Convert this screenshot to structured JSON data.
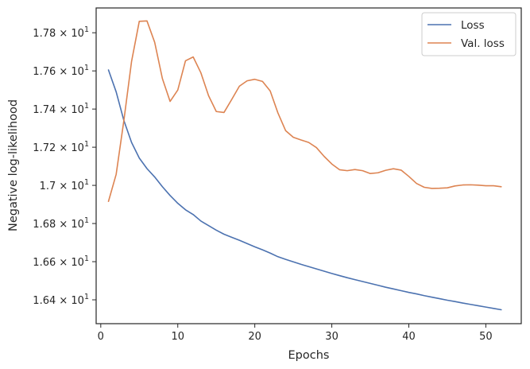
{
  "chart_data": {
    "type": "line",
    "xlabel": "Epochs",
    "ylabel": "Negative log-likelihood",
    "xlim": [
      -0.6,
      54.6
    ],
    "ylim": [
      16.275,
      17.93
    ],
    "xticks": [
      0,
      10,
      20,
      30,
      40,
      50
    ],
    "yticks": [
      {
        "value": 16.4,
        "mantissa": "1.64",
        "base": "10",
        "exp": "1"
      },
      {
        "value": 16.6,
        "mantissa": "1.66",
        "base": "10",
        "exp": "1"
      },
      {
        "value": 16.8,
        "mantissa": "1.68",
        "base": "10",
        "exp": "1"
      },
      {
        "value": 17.0,
        "mantissa": "1.7",
        "base": "10",
        "exp": "1"
      },
      {
        "value": 17.2,
        "mantissa": "1.72",
        "base": "10",
        "exp": "1"
      },
      {
        "value": 17.4,
        "mantissa": "1.74",
        "base": "10",
        "exp": "1"
      },
      {
        "value": 17.6,
        "mantissa": "1.76",
        "base": "10",
        "exp": "1"
      },
      {
        "value": 17.8,
        "mantissa": "1.78",
        "base": "10",
        "exp": "1"
      }
    ],
    "times_sign": "×",
    "grid": false,
    "legend_position": "upper-right",
    "series": [
      {
        "name": "Loss",
        "color": "#4c72b0",
        "x": [
          1,
          2,
          3,
          4,
          5,
          6,
          7,
          8,
          9,
          10,
          11,
          12,
          13,
          14,
          15,
          16,
          17,
          18,
          19,
          20,
          21,
          22,
          23,
          24,
          25,
          26,
          27,
          28,
          29,
          30,
          31,
          32,
          33,
          34,
          35,
          36,
          37,
          38,
          39,
          40,
          41,
          42,
          43,
          44,
          45,
          46,
          47,
          48,
          49,
          50,
          51,
          52
        ],
        "y": [
          17.605,
          17.49,
          17.34,
          17.225,
          17.143,
          17.088,
          17.044,
          16.993,
          16.947,
          16.906,
          16.872,
          16.847,
          16.813,
          16.789,
          16.765,
          16.744,
          16.728,
          16.712,
          16.695,
          16.678,
          16.662,
          16.645,
          16.626,
          16.612,
          16.599,
          16.586,
          16.574,
          16.562,
          16.55,
          16.538,
          16.527,
          16.516,
          16.506,
          16.496,
          16.486,
          16.476,
          16.466,
          16.457,
          16.448,
          16.439,
          16.431,
          16.422,
          16.414,
          16.406,
          16.398,
          16.391,
          16.383,
          16.376,
          16.369,
          16.362,
          16.355,
          16.348
        ]
      },
      {
        "name": "Val. loss",
        "color": "#dd8452",
        "x": [
          1,
          2,
          3,
          4,
          5,
          6,
          7,
          8,
          9,
          10,
          11,
          12,
          13,
          14,
          15,
          16,
          17,
          18,
          19,
          20,
          21,
          22,
          23,
          24,
          25,
          26,
          27,
          28,
          29,
          30,
          31,
          32,
          33,
          34,
          35,
          36,
          37,
          38,
          39,
          40,
          41,
          42,
          43,
          44,
          45,
          46,
          47,
          48,
          49,
          50,
          51,
          52
        ],
        "y": [
          16.916,
          17.058,
          17.34,
          17.65,
          17.86,
          17.862,
          17.75,
          17.56,
          17.44,
          17.5,
          17.653,
          17.673,
          17.59,
          17.47,
          17.387,
          17.382,
          17.45,
          17.52,
          17.548,
          17.556,
          17.545,
          17.495,
          17.38,
          17.287,
          17.252,
          17.238,
          17.225,
          17.198,
          17.152,
          17.112,
          17.082,
          17.077,
          17.083,
          17.077,
          17.062,
          17.066,
          17.079,
          17.087,
          17.08,
          17.047,
          17.01,
          16.99,
          16.984,
          16.985,
          16.987,
          16.997,
          17.002,
          17.003,
          17.001,
          16.998,
          16.998,
          16.993
        ]
      }
    ]
  }
}
